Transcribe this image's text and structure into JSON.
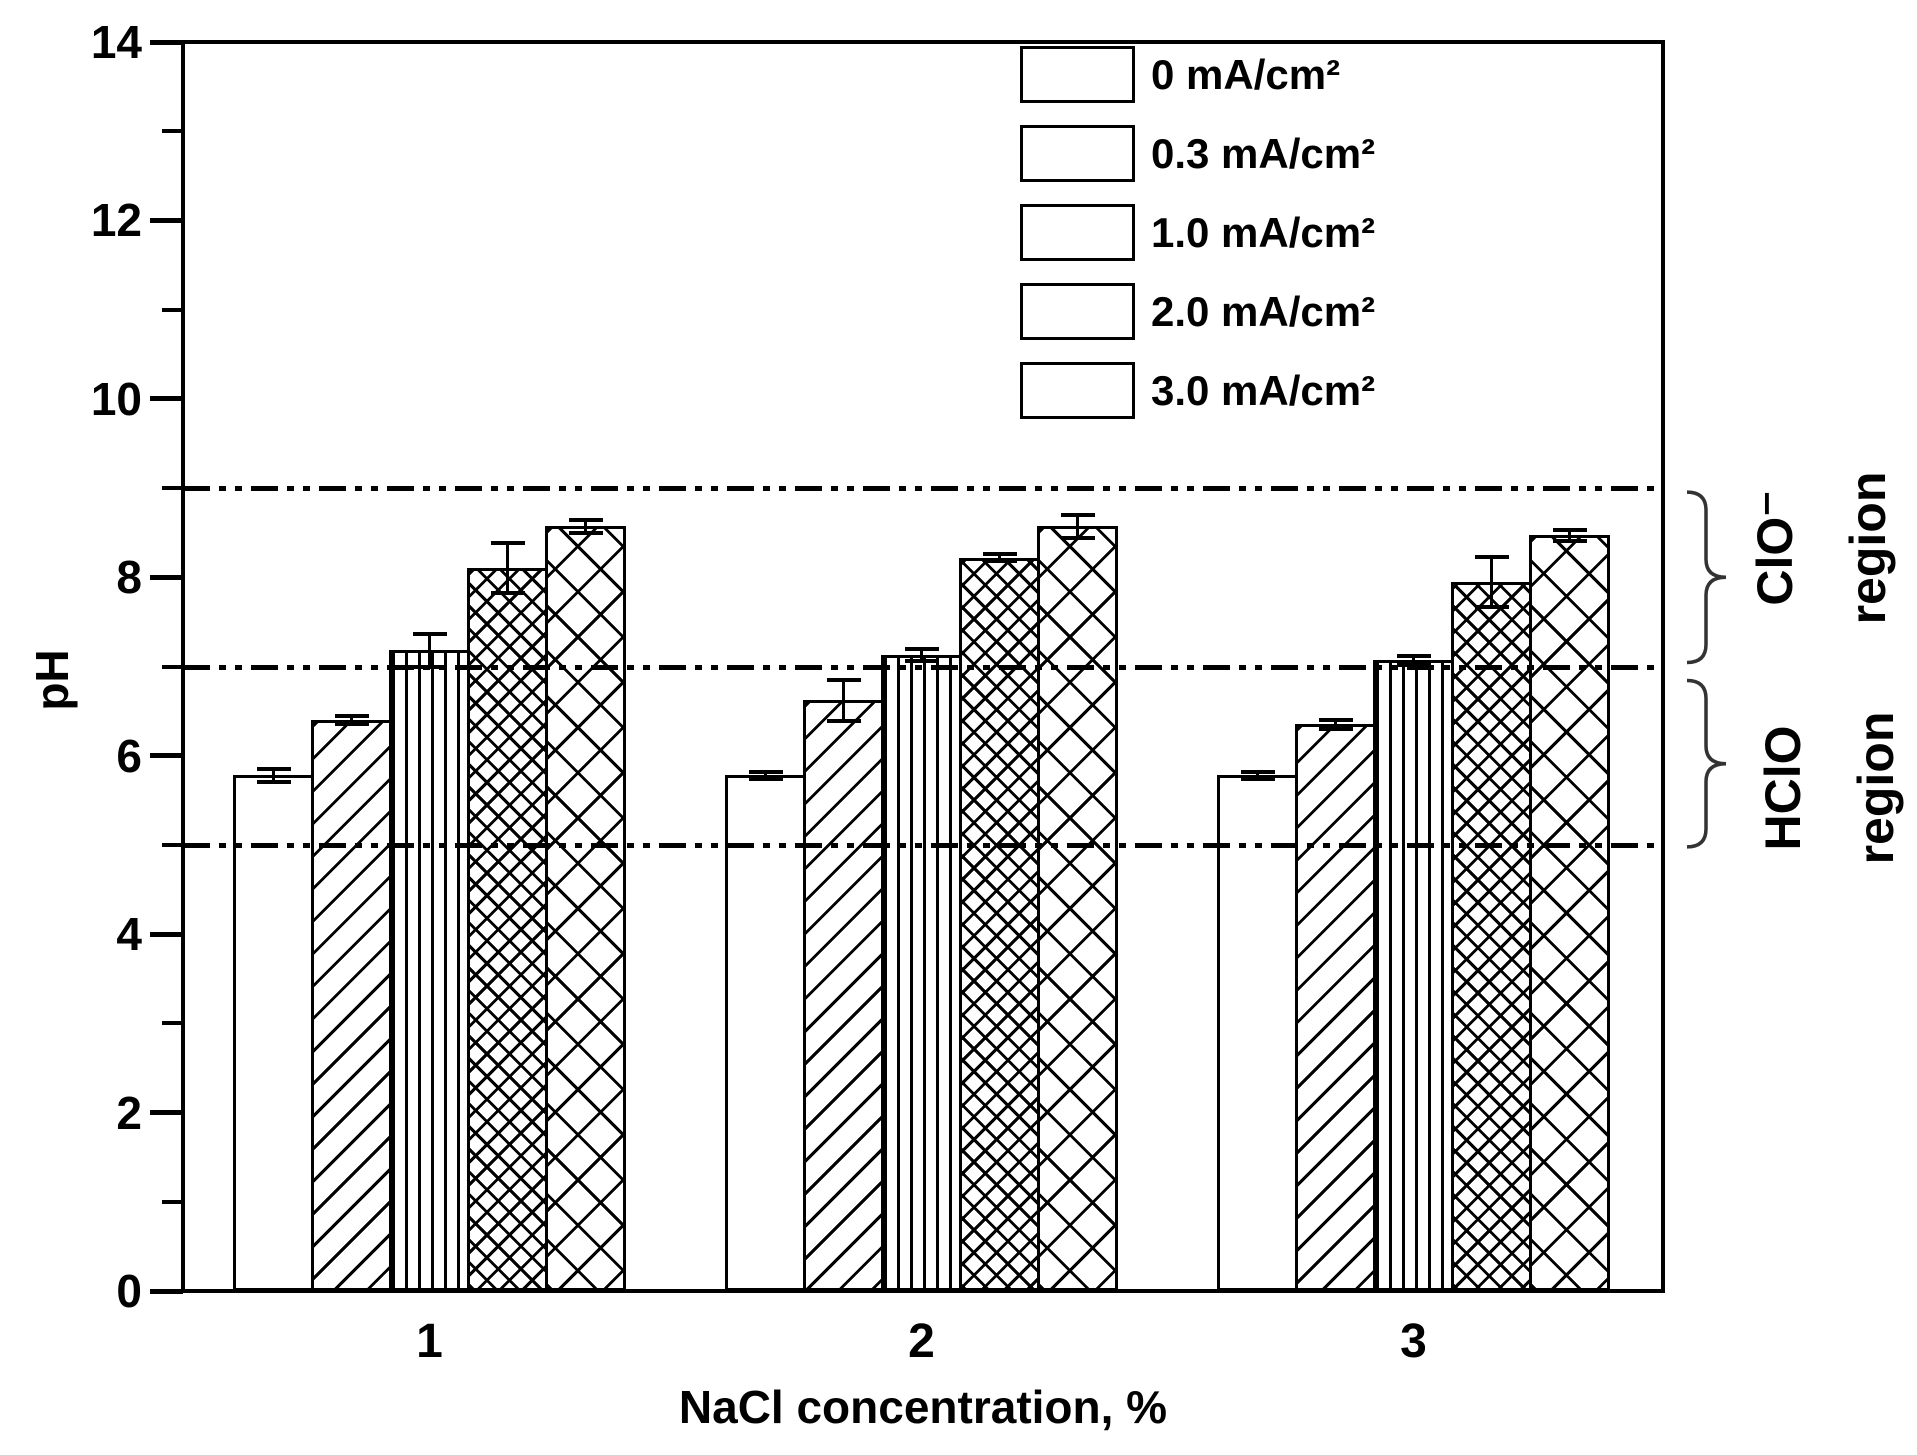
{
  "chart_data": {
    "type": "bar",
    "title": "",
    "xlabel": "NaCl concentration, %",
    "ylabel": "pH",
    "ylim": [
      0,
      14
    ],
    "yticks_major": [
      0,
      2,
      4,
      6,
      8,
      10,
      12,
      14
    ],
    "yticks_minor": [
      1,
      3,
      5,
      7,
      9,
      11,
      13
    ],
    "categories": [
      "1",
      "2",
      "3"
    ],
    "series": [
      {
        "name": "0 mA/cm²",
        "hatch": "none",
        "values": [
          5.78,
          5.78,
          5.78
        ],
        "errors": [
          0.07,
          0.04,
          0.04
        ]
      },
      {
        "name": "0.3 mA/cm²",
        "hatch": "diagonal",
        "values": [
          6.4,
          6.62,
          6.35
        ],
        "errors": [
          0.05,
          0.23,
          0.05
        ]
      },
      {
        "name": "1.0 mA/cm²",
        "hatch": "vertical",
        "values": [
          7.18,
          7.13,
          7.07
        ],
        "errors": [
          0.18,
          0.07,
          0.05
        ]
      },
      {
        "name": "2.0 mA/cm²",
        "hatch": "cross-dense",
        "values": [
          8.1,
          8.22,
          7.95
        ],
        "errors": [
          0.28,
          0.04,
          0.28
        ]
      },
      {
        "name": "3.0 mA/cm²",
        "hatch": "cross-large",
        "values": [
          8.57,
          8.57,
          8.47
        ],
        "errors": [
          0.07,
          0.13,
          0.06
        ]
      }
    ],
    "reference_lines": [
      {
        "pH": 9,
        "style": "dash-dot-dot"
      },
      {
        "pH": 7,
        "style": "dash-dot-dot"
      },
      {
        "pH": 5,
        "style": "dash-dot-dot"
      }
    ],
    "annotations": [
      {
        "label_line1": "ClO⁻",
        "label_line2": "region",
        "from_pH": 9,
        "to_pH": 7
      },
      {
        "label_line1": "HClO",
        "label_line2": "region",
        "from_pH": 7,
        "to_pH": 5
      }
    ],
    "legend_position": "top-right",
    "grid": false,
    "ink_color": "#000000",
    "background_color": "#ffffff"
  }
}
